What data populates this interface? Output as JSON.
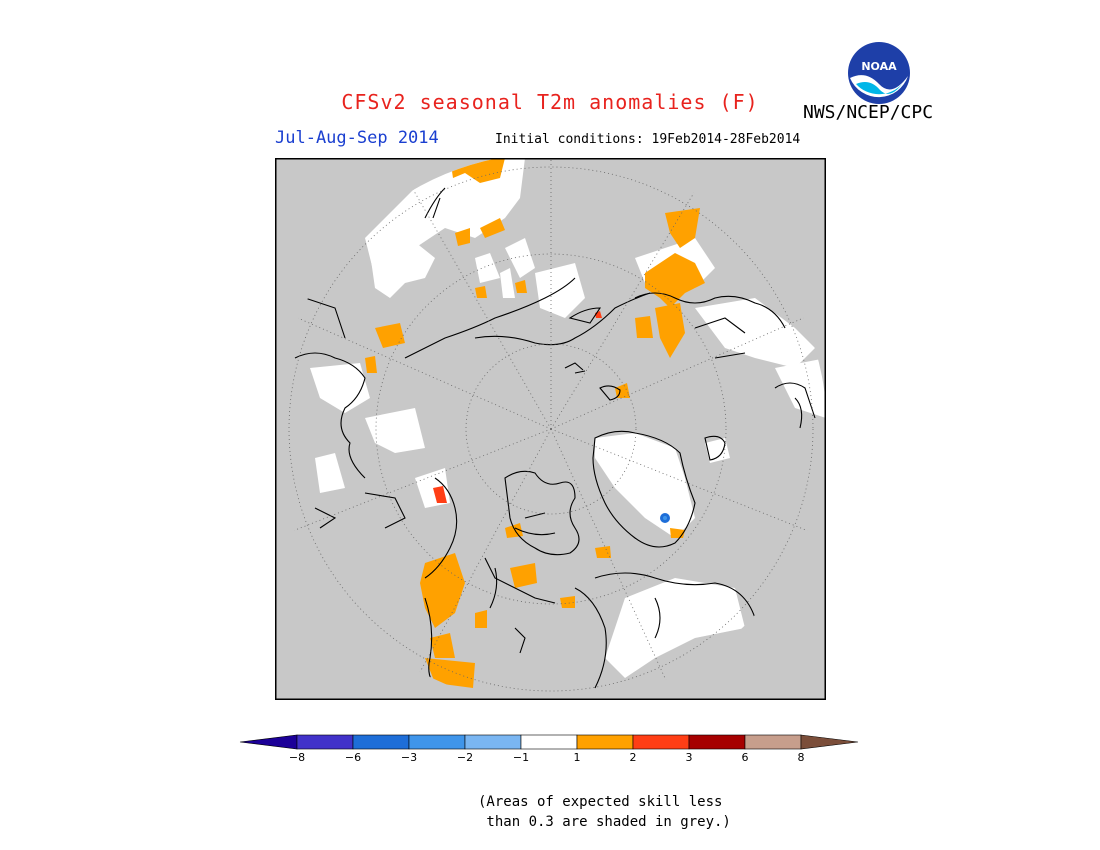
{
  "header": {
    "title": "CFSv2 seasonal T2m anomalies (F)",
    "agency": "NWS/NCEP/CPC",
    "season": "Jul-Aug-Sep 2014",
    "initial_conditions": "Initial conditions: 19Feb2014-28Feb2014"
  },
  "logo": {
    "text": "NOAA"
  },
  "legend": {
    "colors": [
      "#1c0098",
      "#4132c9",
      "#1e6ed8",
      "#3f95ea",
      "#7ab6f2",
      "#ffffff",
      "#ffa100",
      "#ff3e15",
      "#a60000",
      "#c79e8c",
      "#7b4e3a"
    ],
    "labels": [
      "−8",
      "−6",
      "−3",
      "−2",
      "−1",
      "1",
      "2",
      "3",
      "6",
      "8"
    ]
  },
  "colors": {
    "grey_shade": "#c8c8c8",
    "anomaly_warm": "#ffa100",
    "anomaly_hot": "#ff3e15",
    "anomaly_cool": "#1e6ed8",
    "title_red": "#e8231e",
    "season_blue": "#1a3fd0"
  },
  "note": {
    "line1": "(Areas of expected skill less",
    "line2": " than 0.3 are shaded in grey.)"
  }
}
